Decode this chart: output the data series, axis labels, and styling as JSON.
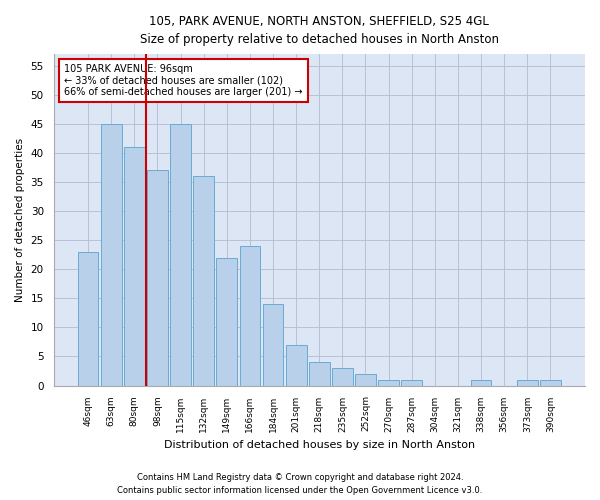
{
  "title_line1": "105, PARK AVENUE, NORTH ANSTON, SHEFFIELD, S25 4GL",
  "title_line2": "Size of property relative to detached houses in North Anston",
  "xlabel": "Distribution of detached houses by size in North Anston",
  "ylabel": "Number of detached properties",
  "footnote1": "Contains HM Land Registry data © Crown copyright and database right 2024.",
  "footnote2": "Contains public sector information licensed under the Open Government Licence v3.0.",
  "categories": [
    "46sqm",
    "63sqm",
    "80sqm",
    "98sqm",
    "115sqm",
    "132sqm",
    "149sqm",
    "166sqm",
    "184sqm",
    "201sqm",
    "218sqm",
    "235sqm",
    "252sqm",
    "270sqm",
    "287sqm",
    "304sqm",
    "321sqm",
    "338sqm",
    "356sqm",
    "373sqm",
    "390sqm"
  ],
  "values": [
    23,
    45,
    41,
    37,
    45,
    36,
    22,
    24,
    14,
    7,
    4,
    3,
    2,
    1,
    1,
    0,
    0,
    1,
    0,
    1,
    1
  ],
  "bar_color": "#b8d0ea",
  "bar_edge_color": "#6aaad4",
  "marker_bin_index": 2,
  "marker_color": "#cc0000",
  "annotation_text": "105 PARK AVENUE: 96sqm\n← 33% of detached houses are smaller (102)\n66% of semi-detached houses are larger (201) →",
  "ylim": [
    0,
    57
  ],
  "yticks": [
    0,
    5,
    10,
    15,
    20,
    25,
    30,
    35,
    40,
    45,
    50,
    55
  ],
  "background_color": "#ffffff",
  "axes_bg_color": "#dce6f5",
  "grid_color": "#b0bcd4"
}
